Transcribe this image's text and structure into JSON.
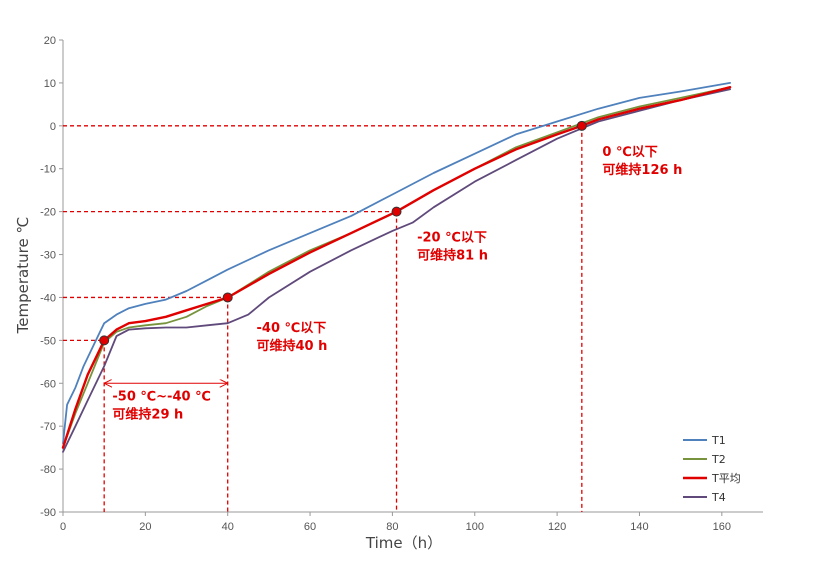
{
  "chart_data": {
    "type": "line",
    "xlabel": "Time（h）",
    "ylabel": "Temperature ℃",
    "xlim": [
      0,
      170
    ],
    "ylim": [
      -90,
      20
    ],
    "x_ticks": [
      0,
      20,
      40,
      60,
      80,
      100,
      120,
      140,
      160
    ],
    "y_ticks": [
      20,
      10,
      0,
      -10,
      -20,
      -30,
      -40,
      -50,
      -60,
      -70,
      -80,
      -90
    ],
    "grid": false,
    "legend_position": "bottom-right",
    "series": [
      {
        "name": "T1",
        "color": "#4f81bd",
        "points": [
          [
            0,
            -74
          ],
          [
            1,
            -65
          ],
          [
            3,
            -61
          ],
          [
            5,
            -56
          ],
          [
            8,
            -50
          ],
          [
            10,
            -46
          ],
          [
            13,
            -44
          ],
          [
            16,
            -42.5
          ],
          [
            20,
            -41.5
          ],
          [
            25,
            -40.5
          ],
          [
            30,
            -38.5
          ],
          [
            35,
            -36
          ],
          [
            40,
            -33.5
          ],
          [
            50,
            -29
          ],
          [
            60,
            -25
          ],
          [
            70,
            -21
          ],
          [
            80,
            -16
          ],
          [
            90,
            -11
          ],
          [
            100,
            -6.5
          ],
          [
            110,
            -2
          ],
          [
            120,
            1
          ],
          [
            130,
            4
          ],
          [
            140,
            6.5
          ],
          [
            150,
            8
          ],
          [
            162,
            10
          ]
        ]
      },
      {
        "name": "T2",
        "color": "#77933c",
        "points": [
          [
            0,
            -75
          ],
          [
            3,
            -67
          ],
          [
            6,
            -60
          ],
          [
            10,
            -50.5
          ],
          [
            13,
            -48
          ],
          [
            16,
            -47
          ],
          [
            20,
            -46.5
          ],
          [
            25,
            -46
          ],
          [
            30,
            -44.5
          ],
          [
            35,
            -42
          ],
          [
            40,
            -40
          ],
          [
            50,
            -34
          ],
          [
            60,
            -29
          ],
          [
            70,
            -25
          ],
          [
            80,
            -20.5
          ],
          [
            90,
            -15
          ],
          [
            100,
            -10
          ],
          [
            110,
            -5
          ],
          [
            120,
            -1.5
          ],
          [
            130,
            2
          ],
          [
            140,
            4.5
          ],
          [
            150,
            6.5
          ],
          [
            162,
            9
          ]
        ]
      },
      {
        "name": "T平均",
        "color": "#e00000",
        "points": [
          [
            0,
            -75
          ],
          [
            3,
            -66
          ],
          [
            6,
            -58
          ],
          [
            10,
            -50
          ],
          [
            13,
            -47.5
          ],
          [
            16,
            -46
          ],
          [
            20,
            -45.5
          ],
          [
            25,
            -44.5
          ],
          [
            30,
            -43
          ],
          [
            35,
            -41.5
          ],
          [
            40,
            -40
          ],
          [
            50,
            -34.5
          ],
          [
            60,
            -29.5
          ],
          [
            70,
            -25
          ],
          [
            81,
            -20
          ],
          [
            90,
            -15
          ],
          [
            100,
            -10
          ],
          [
            110,
            -5.5
          ],
          [
            120,
            -2
          ],
          [
            126,
            0
          ],
          [
            130,
            1.5
          ],
          [
            140,
            4
          ],
          [
            150,
            6
          ],
          [
            162,
            9
          ]
        ]
      },
      {
        "name": "T4",
        "color": "#604a7b",
        "points": [
          [
            0,
            -76
          ],
          [
            3,
            -70
          ],
          [
            6,
            -64
          ],
          [
            10,
            -56
          ],
          [
            13,
            -49
          ],
          [
            16,
            -47.5
          ],
          [
            20,
            -47.2
          ],
          [
            25,
            -47
          ],
          [
            30,
            -47
          ],
          [
            35,
            -46.5
          ],
          [
            40,
            -46
          ],
          [
            45,
            -44
          ],
          [
            50,
            -40
          ],
          [
            60,
            -34
          ],
          [
            70,
            -29
          ],
          [
            80,
            -24.5
          ],
          [
            85,
            -22.5
          ],
          [
            90,
            -19
          ],
          [
            100,
            -13
          ],
          [
            110,
            -8
          ],
          [
            120,
            -3
          ],
          [
            130,
            1
          ],
          [
            140,
            3.5
          ],
          [
            150,
            6
          ],
          [
            162,
            8.5
          ]
        ]
      }
    ],
    "reference_points": [
      {
        "x": 10,
        "y": -50
      },
      {
        "x": 40,
        "y": -40
      },
      {
        "x": 81,
        "y": -20
      },
      {
        "x": 126,
        "y": 0
      }
    ],
    "span_arrow": {
      "x1": 10,
      "x2": 40,
      "y": -60
    },
    "annotations": [
      {
        "line1": "-50 ℃~-40 ℃",
        "line2": "可维持29 h",
        "x": 12,
        "y": -64
      },
      {
        "line1": "-40 ℃以下",
        "line2": "可维持40 h",
        "x": 47,
        "y": -48
      },
      {
        "line1": "-20 ℃以下",
        "line2": "可维持81 h",
        "x": 86,
        "y": -27
      },
      {
        "line1": "0 ℃以下",
        "line2": "可维持126 h",
        "x": 131,
        "y": -7
      }
    ],
    "annotation_color": "#e00000"
  }
}
